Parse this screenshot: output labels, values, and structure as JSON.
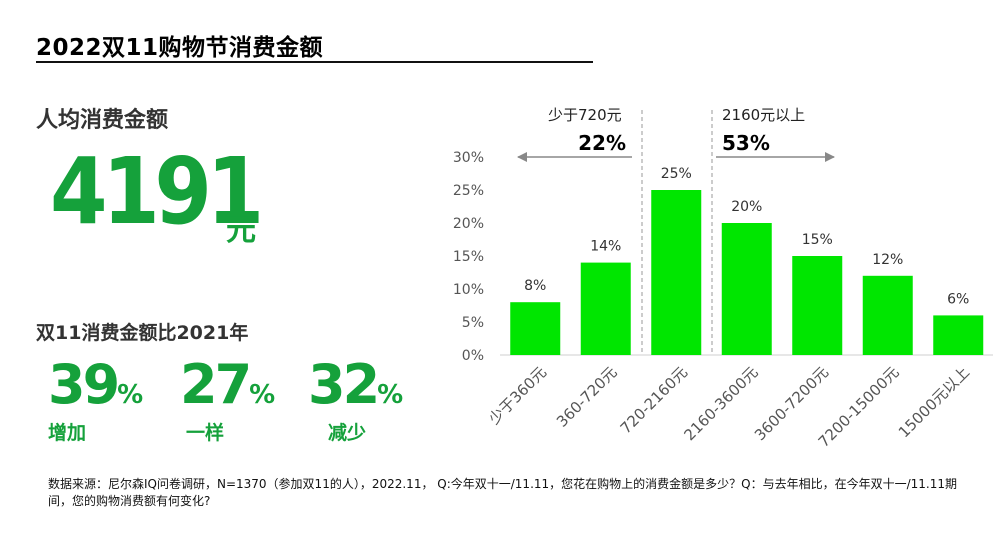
{
  "title": "2022双11购物节消费金额",
  "avg": {
    "label": "人均消费金额",
    "value": "4191",
    "unit": "元"
  },
  "compare": {
    "label": "双11消费金额比2021年",
    "items": [
      {
        "value": "39",
        "sign": "%",
        "caption": "增加"
      },
      {
        "value": "27",
        "sign": "%",
        "caption": "一样"
      },
      {
        "value": "32",
        "sign": "%",
        "caption": "减少"
      }
    ]
  },
  "chart_data": {
    "type": "bar",
    "categories": [
      "少于360元",
      "360-720元",
      "720-2160元",
      "2160-3600元",
      "3600-7200元",
      "7200-15000元",
      "15000元以上"
    ],
    "values": [
      8,
      14,
      25,
      20,
      15,
      12,
      6
    ],
    "value_labels": [
      "8%",
      "14%",
      "25%",
      "20%",
      "15%",
      "12%",
      "6%"
    ],
    "yticks": [
      "0%",
      "5%",
      "10%",
      "15%",
      "20%",
      "25%",
      "30%"
    ],
    "ylim": [
      0,
      30
    ],
    "bar_color": "#00e600",
    "annotations": [
      {
        "label": "少于720元",
        "value": "22%",
        "arrow": "left"
      },
      {
        "label": "2160元以上",
        "value": "53%",
        "arrow": "right"
      }
    ]
  },
  "source": "数据来源：尼尔森IQ问卷调研，N=1370（参加双11的人），2022.11， Q:今年双十一/11.11，您花在购物上的消费金额是多少？Q：与去年相比，在今年双十一/11.11期间，您的购物消费额有何变化?"
}
